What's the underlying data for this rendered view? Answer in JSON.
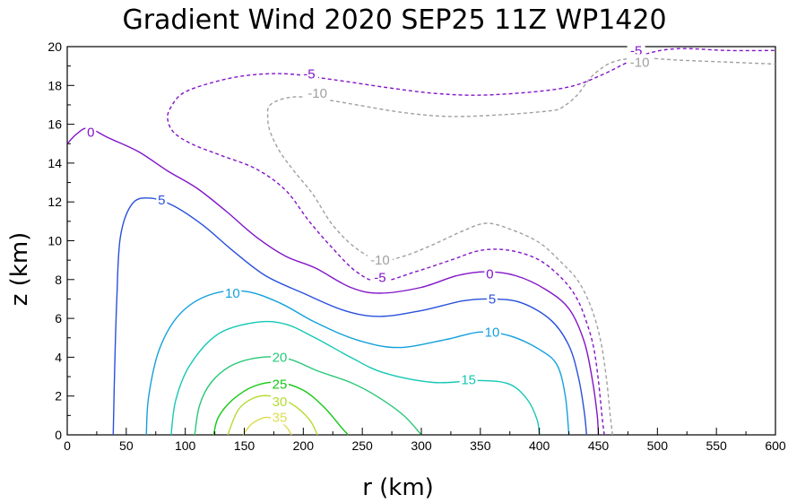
{
  "chart_data": {
    "type": "contour",
    "title": "Gradient Wind 2020 SEP25 11Z   WP1420",
    "xlabel": "r (km)",
    "ylabel": "z (km)",
    "xlim": [
      0,
      600
    ],
    "ylim": [
      0,
      20
    ],
    "xticks": [
      "0",
      "50",
      "100",
      "150",
      "200",
      "250",
      "300",
      "350",
      "400",
      "450",
      "500",
      "550",
      "600"
    ],
    "yticks": [
      "0",
      "2",
      "4",
      "6",
      "8",
      "10",
      "12",
      "14",
      "16",
      "18",
      "20"
    ],
    "grid": false,
    "legend": "none",
    "contours": [
      {
        "level": "35",
        "color": "#dcdc50",
        "dashed": false,
        "points": [
          [
            149,
            0
          ],
          [
            157,
            0.6
          ],
          [
            170,
            0.9
          ],
          [
            184,
            0.5
          ],
          [
            190,
            0
          ]
        ],
        "label_at": [
          180,
          0.9
        ]
      },
      {
        "level": "30",
        "color": "#b4dc32",
        "dashed": false,
        "points": [
          [
            136,
            0
          ],
          [
            145,
            1.3
          ],
          [
            158,
            1.9
          ],
          [
            172,
            2.0
          ],
          [
            190,
            1.6
          ],
          [
            205,
            0.8
          ],
          [
            212,
            0
          ]
        ],
        "label_at": [
          180,
          1.7
        ]
      },
      {
        "level": "25",
        "color": "#14c814",
        "dashed": false,
        "points": [
          [
            124,
            0
          ],
          [
            128,
            0.9
          ],
          [
            140,
            1.8
          ],
          [
            158,
            2.5
          ],
          [
            178,
            2.7
          ],
          [
            200,
            2.3
          ],
          [
            218,
            1.4
          ],
          [
            232,
            0.4
          ],
          [
            238,
            0
          ]
        ],
        "label_at": [
          180,
          2.6
        ]
      },
      {
        "level": "20",
        "color": "#28c878",
        "dashed": false,
        "points": [
          [
            108,
            0
          ],
          [
            112,
            1.5
          ],
          [
            122,
            2.7
          ],
          [
            140,
            3.6
          ],
          [
            165,
            4.0
          ],
          [
            188,
            3.9
          ],
          [
            212,
            3.3
          ],
          [
            240,
            2.7
          ],
          [
            262,
            2.0
          ],
          [
            285,
            1.0
          ],
          [
            300,
            0
          ]
        ],
        "label_at": [
          180,
          4.0
        ]
      },
      {
        "level": "15",
        "color": "#14c8b4",
        "dashed": false,
        "points": [
          [
            88,
            0
          ],
          [
            92,
            1.8
          ],
          [
            104,
            3.6
          ],
          [
            128,
            5.2
          ],
          [
            160,
            5.8
          ],
          [
            185,
            5.7
          ],
          [
            210,
            5.0
          ],
          [
            240,
            4.0
          ],
          [
            268,
            3.2
          ],
          [
            310,
            2.7
          ],
          [
            350,
            2.8
          ],
          [
            375,
            2.6
          ],
          [
            390,
            1.8
          ],
          [
            398,
            0.8
          ],
          [
            400,
            0
          ]
        ],
        "label_at": [
          340,
          2.85
        ]
      },
      {
        "level": "10",
        "color": "#14a0dc",
        "dashed": false,
        "points": [
          [
            67,
            0
          ],
          [
            69,
            2.0
          ],
          [
            78,
            4.4
          ],
          [
            95,
            6.2
          ],
          [
            120,
            7.2
          ],
          [
            150,
            7.4
          ],
          [
            180,
            6.8
          ],
          [
            210,
            5.8
          ],
          [
            245,
            4.9
          ],
          [
            280,
            4.5
          ],
          [
            320,
            4.9
          ],
          [
            350,
            5.3
          ],
          [
            375,
            5.1
          ],
          [
            400,
            4.4
          ],
          [
            415,
            3.6
          ],
          [
            422,
            2.0
          ],
          [
            425,
            0
          ]
        ],
        "label_at": [
          360,
          5.3
        ]
      },
      {
        "level": "5",
        "color": "#2850dc",
        "dashed": false,
        "points": [
          [
            39,
            0
          ],
          [
            40,
            3.0
          ],
          [
            42,
            7.0
          ],
          [
            45,
            10.2
          ],
          [
            55,
            11.9
          ],
          [
            70,
            12.2
          ],
          [
            90,
            11.8
          ],
          [
            115,
            10.8
          ],
          [
            140,
            9.5
          ],
          [
            168,
            8.2
          ],
          [
            200,
            7.3
          ],
          [
            235,
            6.4
          ],
          [
            265,
            6.1
          ],
          [
            300,
            6.4
          ],
          [
            335,
            6.9
          ],
          [
            360,
            7.0
          ],
          [
            385,
            6.8
          ],
          [
            410,
            5.9
          ],
          [
            425,
            4.6
          ],
          [
            433,
            3.0
          ],
          [
            438,
            1.2
          ],
          [
            440,
            0
          ]
        ],
        "label_at": [
          360,
          7.0
        ]
      },
      {
        "level": "0",
        "color": "#8214c8",
        "dashed": false,
        "points": [
          [
            0,
            15.0
          ],
          [
            8,
            15.5
          ],
          [
            18,
            15.8
          ],
          [
            35,
            15.3
          ],
          [
            60,
            14.6
          ],
          [
            85,
            13.6
          ],
          [
            110,
            12.7
          ],
          [
            135,
            11.5
          ],
          [
            160,
            10.2
          ],
          [
            185,
            9.2
          ],
          [
            210,
            8.6
          ],
          [
            240,
            7.6
          ],
          [
            265,
            7.3
          ],
          [
            300,
            7.6
          ],
          [
            330,
            8.2
          ],
          [
            355,
            8.4
          ],
          [
            380,
            8.2
          ],
          [
            405,
            7.5
          ],
          [
            425,
            6.5
          ],
          [
            438,
            4.8
          ],
          [
            445,
            2.8
          ],
          [
            449,
            1.0
          ],
          [
            450,
            0
          ]
        ],
        "label_at": [
          358,
          8.3
        ]
      },
      {
        "level": "-5",
        "color": "#8214c8",
        "dashed": true,
        "points": [
          [
            455,
            0
          ],
          [
            453,
            1.0
          ],
          [
            450,
            2.8
          ],
          [
            446,
            4.5
          ],
          [
            440,
            5.8
          ],
          [
            432,
            7.0
          ],
          [
            420,
            8.0
          ],
          [
            400,
            9.0
          ],
          [
            375,
            9.5
          ],
          [
            350,
            9.5
          ],
          [
            325,
            9.0
          ],
          [
            295,
            8.4
          ],
          [
            265,
            7.9
          ],
          [
            245,
            8.4
          ],
          [
            225,
            9.6
          ],
          [
            205,
            11.0
          ],
          [
            185,
            12.6
          ],
          [
            160,
            13.7
          ],
          [
            130,
            14.4
          ],
          [
            105,
            15.0
          ],
          [
            90,
            15.6
          ],
          [
            85,
            16.3
          ],
          [
            88,
            16.9
          ],
          [
            98,
            17.6
          ],
          [
            120,
            18.1
          ],
          [
            150,
            18.5
          ],
          [
            185,
            18.6
          ],
          [
            225,
            18.3
          ],
          [
            270,
            17.9
          ],
          [
            310,
            17.6
          ],
          [
            350,
            17.5
          ],
          [
            400,
            17.7
          ],
          [
            430,
            18.0
          ],
          [
            455,
            18.6
          ],
          [
            475,
            19.2
          ],
          [
            495,
            19.7
          ],
          [
            520,
            19.9
          ],
          [
            560,
            19.8
          ],
          [
            600,
            19.8
          ]
        ],
        "label_at": [
          205,
          18.6
        ]
      },
      {
        "level": "-10",
        "color": "#a0a0a0",
        "dashed": true,
        "points": [
          [
            462,
            0
          ],
          [
            460,
            1.0
          ],
          [
            457,
            2.8
          ],
          [
            453,
            4.5
          ],
          [
            448,
            5.8
          ],
          [
            441,
            7.0
          ],
          [
            432,
            8.0
          ],
          [
            420,
            8.8
          ],
          [
            400,
            9.9
          ],
          [
            375,
            10.6
          ],
          [
            355,
            10.9
          ],
          [
            335,
            10.5
          ],
          [
            310,
            9.8
          ],
          [
            285,
            9.2
          ],
          [
            265,
            9.0
          ],
          [
            245,
            9.6
          ],
          [
            225,
            10.8
          ],
          [
            208,
            12.4
          ],
          [
            192,
            13.6
          ],
          [
            180,
            14.6
          ],
          [
            172,
            15.6
          ],
          [
            170,
            16.3
          ],
          [
            172,
            17.0
          ],
          [
            190,
            17.4
          ],
          [
            215,
            17.3
          ],
          [
            245,
            17.0
          ],
          [
            285,
            16.6
          ],
          [
            325,
            16.4
          ],
          [
            370,
            16.5
          ],
          [
            410,
            16.7
          ],
          [
            420,
            16.9
          ],
          [
            432,
            17.5
          ],
          [
            445,
            18.5
          ],
          [
            462,
            19.2
          ],
          [
            485,
            19.4
          ],
          [
            520,
            19.3
          ],
          [
            560,
            19.2
          ],
          [
            600,
            19.1
          ]
        ],
        "label_at": [
          212,
          17.6
        ]
      }
    ],
    "extra_labels": [
      {
        "text": "0",
        "color": "#8214c8",
        "at": [
          20,
          15.6
        ]
      },
      {
        "text": "5",
        "color": "#2850dc",
        "at": [
          80,
          12.1
        ]
      },
      {
        "text": "10",
        "color": "#14a0dc",
        "at": [
          140,
          7.3
        ]
      },
      {
        "text": "-5",
        "color": "#8214c8",
        "at": [
          265,
          8.1
        ]
      },
      {
        "text": "-10",
        "color": "#a0a0a0",
        "at": [
          265,
          9.0
        ]
      },
      {
        "text": "-5",
        "color": "#8214c8",
        "at": [
          482,
          19.8
        ]
      },
      {
        "text": "-10",
        "color": "#a0a0a0",
        "at": [
          485,
          19.2
        ]
      }
    ]
  }
}
